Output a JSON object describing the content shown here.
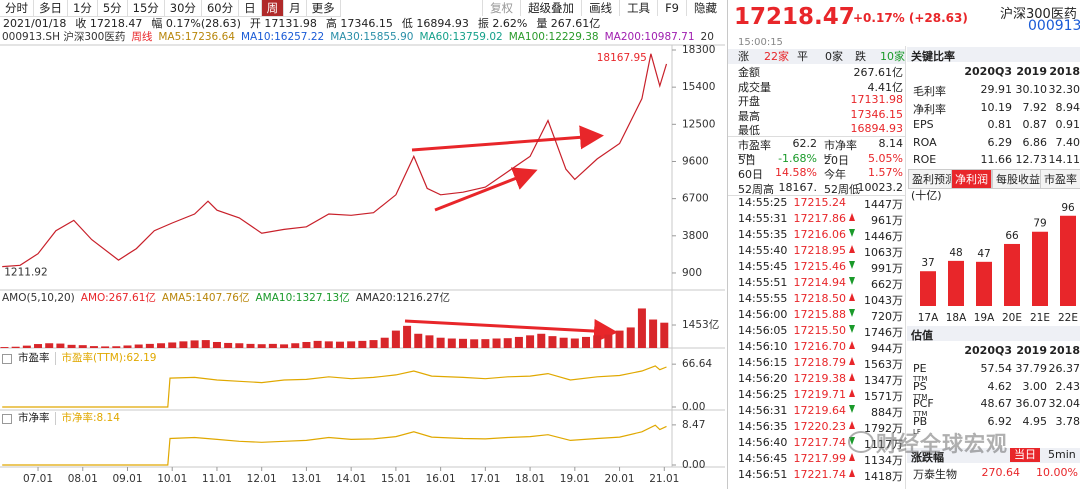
{
  "toolbar": {
    "left": [
      "分时",
      "多日",
      "1分",
      "5分",
      "15分",
      "30分",
      "60分",
      "日",
      "周",
      "月",
      "更多"
    ],
    "active_index": 8,
    "right": [
      "复权",
      "超级叠加",
      "画线",
      "工具",
      "F9",
      "隐藏"
    ]
  },
  "info": {
    "date": "2021/01/18",
    "items": [
      "收 17218.47",
      "幅 0.17%(28.63)",
      "开 17131.98",
      "高 17346.15",
      "低 16894.93",
      "振 2.62%",
      "量 267.61亿"
    ]
  },
  "ma_legend": [
    {
      "text": "000913.SH 沪深300医药",
      "color": "#333333"
    },
    {
      "text": "周线",
      "color": "#e8262a"
    },
    {
      "text": "MA5:17236.64",
      "color": "#b8860b"
    },
    {
      "text": "MA10:16257.22",
      "color": "#1a5bd6"
    },
    {
      "text": "MA30:15855.90",
      "color": "#2a8fa8"
    },
    {
      "text": "MA60:13759.02",
      "color": "#14a08a"
    },
    {
      "text": "MA100:12229.38",
      "color": "#2a9a2a"
    },
    {
      "text": "MA200:10987.71",
      "color": "#a020b0"
    },
    {
      "text": "20",
      "color": "#333333"
    }
  ],
  "price_chart": {
    "type": "line",
    "color": "#c8202a",
    "x": [
      2006.2,
      2006.6,
      2007.0,
      2007.4,
      2007.8,
      2008.2,
      2008.8,
      2009.2,
      2009.6,
      2010.0,
      2010.5,
      2010.8,
      2011.0,
      2011.5,
      2012.0,
      2012.5,
      2013.0,
      2013.5,
      2014.0,
      2014.5,
      2015.0,
      2015.4,
      2015.7,
      2016.0,
      2016.5,
      2017.0,
      2017.5,
      2018.0,
      2018.4,
      2018.8,
      2019.0,
      2019.5,
      2020.0,
      2020.5,
      2020.7,
      2020.9,
      2021.05
    ],
    "values": [
      1400,
      1500,
      2400,
      4200,
      5000,
      3500,
      1900,
      2800,
      4200,
      4800,
      5500,
      6500,
      5800,
      5200,
      4000,
      4300,
      4500,
      5500,
      5400,
      5600,
      7000,
      10000,
      7500,
      7000,
      7200,
      7600,
      8800,
      10000,
      12800,
      9000,
      8200,
      9800,
      11000,
      14500,
      18000,
      15500,
      17218.47
    ],
    "xlim": [
      2006.15,
      2021.15
    ],
    "ylim": [
      -430,
      18690
    ],
    "yticks": [
      18300,
      15400,
      12500,
      9600,
      6700,
      3800,
      900
    ],
    "xticks": [
      {
        "value": 2007,
        "label": "07.01"
      },
      {
        "value": 2008,
        "label": "08.01"
      },
      {
        "value": 2009,
        "label": "09.01"
      },
      {
        "value": 2010,
        "label": "10.01"
      },
      {
        "value": 2011,
        "label": "11.01"
      },
      {
        "value": 2012,
        "label": "12.01"
      },
      {
        "value": 2013,
        "label": "13.01"
      },
      {
        "value": 2014,
        "label": "14.01"
      },
      {
        "value": 2015,
        "label": "15.01"
      },
      {
        "value": 2016,
        "label": "16.01"
      },
      {
        "value": 2017,
        "label": "17.01"
      },
      {
        "value": 2018,
        "label": "18.01"
      },
      {
        "value": 2019,
        "label": "19.01"
      },
      {
        "value": 2020,
        "label": "20.01"
      },
      {
        "value": 2021,
        "label": "21.01"
      }
    ],
    "high_label": "18167.95",
    "low_label": "1211.92"
  },
  "volume": {
    "type": "bar",
    "color": "#d8262a",
    "legend": [
      {
        "text": "AMO(5,10,20)",
        "color": "#333333"
      },
      {
        "text": "AMO:267.61亿",
        "color": "#e8262a"
      },
      {
        "text": "AMA5:1407.76亿",
        "color": "#b8860b"
      },
      {
        "text": "AMA10:1327.13亿",
        "color": "#1a9a2a"
      },
      {
        "text": "AMA20:1216.27亿",
        "color": "#333333"
      }
    ],
    "x": [
      2006.25,
      2006.5,
      2006.75,
      2007.0,
      2007.25,
      2007.5,
      2007.75,
      2008.0,
      2008.25,
      2008.5,
      2008.75,
      2009.0,
      2009.25,
      2009.5,
      2009.75,
      2010.0,
      2010.25,
      2010.5,
      2010.75,
      2011.0,
      2011.25,
      2011.5,
      2011.75,
      2012.0,
      2012.25,
      2012.5,
      2012.75,
      2013.0,
      2013.25,
      2013.5,
      2013.75,
      2014.0,
      2014.25,
      2014.5,
      2014.75,
      2015.0,
      2015.25,
      2015.5,
      2015.75,
      2016.0,
      2016.25,
      2016.5,
      2016.75,
      2017.0,
      2017.25,
      2017.5,
      2017.75,
      2018.0,
      2018.25,
      2018.5,
      2018.75,
      2019.0,
      2019.25,
      2019.5,
      2019.75,
      2020.0,
      2020.25,
      2020.5,
      2020.75,
      2021.0
    ],
    "values": [
      60,
      80,
      150,
      250,
      300,
      280,
      200,
      180,
      120,
      100,
      110,
      160,
      220,
      260,
      300,
      350,
      420,
      480,
      500,
      380,
      320,
      300,
      260,
      240,
      260,
      230,
      300,
      380,
      450,
      420,
      400,
      420,
      450,
      500,
      650,
      1100,
      1400,
      900,
      800,
      650,
      600,
      580,
      550,
      560,
      600,
      620,
      700,
      800,
      900,
      750,
      650,
      600,
      700,
      800,
      850,
      1100,
      1300,
      2500,
      1800,
      1600
    ],
    "ylim": [
      0,
      3540
    ],
    "yticks": [
      {
        "value": 1453,
        "label": "1453亿"
      }
    ]
  },
  "pe": {
    "type": "line",
    "title": "市盈率",
    "legend": "市盈率(TTM):62.19",
    "color": "#e0a800",
    "x": [
      2006.2,
      2009.9,
      2009.95,
      2010.5,
      2011.0,
      2011.5,
      2012.0,
      2012.5,
      2013.0,
      2013.5,
      2014.0,
      2014.5,
      2015.0,
      2015.4,
      2015.8,
      2016.5,
      2017.0,
      2017.5,
      2018.0,
      2018.4,
      2018.9,
      2019.5,
      2020.0,
      2020.5,
      2020.8,
      2020.9,
      2021.05
    ],
    "values": [
      0,
      0,
      45,
      46,
      42,
      40,
      38,
      42,
      43,
      47,
      44,
      46,
      50,
      56,
      48,
      46,
      44,
      47,
      48,
      52,
      42,
      47,
      49,
      56,
      64,
      58,
      62.19
    ],
    "ylim": [
      0,
      70
    ],
    "yticks": [
      66.64,
      {
        "value": 0,
        "label": "0.00"
      }
    ]
  },
  "pb": {
    "type": "line",
    "title": "市净率",
    "legend": "市净率:8.14",
    "color": "#e0a800",
    "x": [
      2006.2,
      2009.9,
      2009.95,
      2010.5,
      2011.0,
      2011.5,
      2012.0,
      2012.5,
      2013.0,
      2013.5,
      2014.0,
      2014.5,
      2015.0,
      2015.4,
      2015.8,
      2016.5,
      2017.0,
      2017.5,
      2018.0,
      2018.4,
      2018.9,
      2019.5,
      2020.0,
      2020.5,
      2020.8,
      2020.9,
      2021.05
    ],
    "values": [
      0,
      0,
      5.6,
      5.8,
      5.4,
      5,
      4.8,
      5,
      5.2,
      5.8,
      5.4,
      5.5,
      6,
      7,
      5.9,
      5.6,
      5.5,
      5.8,
      6,
      6.4,
      5.2,
      5.6,
      5.9,
      7,
      8.4,
      7.5,
      8.14
    ],
    "ylim": [
      0,
      9.5
    ],
    "yticks": [
      8.47,
      {
        "value": 0,
        "label": "0.00"
      }
    ]
  },
  "quote_header": {
    "price": "17218.47",
    "change": "+0.17% (+28.63)",
    "name": "沪深300医药",
    "code": "000913",
    "time": "15:00:15"
  },
  "breadth": [
    "涨",
    "22家",
    "平",
    "0家",
    "跌",
    "10家"
  ],
  "quote": [
    {
      "label": "金额",
      "value": "267.61亿",
      "color": "#222222"
    },
    {
      "label": "成交量",
      "value": "4.41亿",
      "color": "#222222"
    },
    {
      "label": "开盘",
      "value": "17131.98",
      "color": "#e8262a"
    },
    {
      "label": "最高",
      "value": "17346.15",
      "color": "#e8262a"
    },
    {
      "label": "最低",
      "value": "16894.93",
      "color": "#e8262a"
    }
  ],
  "stats": [
    [
      {
        "label": "市盈率",
        "sup": "TTM",
        "value": "62.2",
        "color": "#222222"
      },
      {
        "label": "市净率",
        "sup": "LF",
        "value": "8.14",
        "color": "#222222"
      }
    ],
    [
      {
        "label": "5日",
        "value": "-1.68%",
        "color": "#1a9a2a"
      },
      {
        "label": "20日",
        "value": "5.05%",
        "color": "#e8262a"
      }
    ],
    [
      {
        "label": "60日",
        "value": "14.58%",
        "color": "#e8262a"
      },
      {
        "label": "今年",
        "value": "1.57%",
        "color": "#e8262a"
      }
    ],
    [
      {
        "label": "52周高",
        "value": "18167.",
        "color": "#222222"
      },
      {
        "label": "52周低",
        "value": "10023.2",
        "color": "#222222"
      }
    ]
  ],
  "trades": [
    {
      "time": "14:55:25",
      "price": "17215.24",
      "dir": null,
      "vol": "1447万"
    },
    {
      "time": "14:55:31",
      "price": "17217.86",
      "dir": "up",
      "vol": "961万"
    },
    {
      "time": "14:55:35",
      "price": "17216.06",
      "dir": "down",
      "vol": "1446万"
    },
    {
      "time": "14:55:40",
      "price": "17218.95",
      "dir": "up",
      "vol": "1063万"
    },
    {
      "time": "14:55:45",
      "price": "17215.46",
      "dir": "down",
      "vol": "991万"
    },
    {
      "time": "14:55:51",
      "price": "17214.94",
      "dir": "down",
      "vol": "662万"
    },
    {
      "time": "14:55:55",
      "price": "17218.50",
      "dir": "up",
      "vol": "1043万"
    },
    {
      "time": "14:56:00",
      "price": "17215.88",
      "dir": "down",
      "vol": "720万"
    },
    {
      "time": "14:56:05",
      "price": "17215.50",
      "dir": "down",
      "vol": "1746万"
    },
    {
      "time": "14:56:10",
      "price": "17216.70",
      "dir": "up",
      "vol": "944万"
    },
    {
      "time": "14:56:15",
      "price": "17218.79",
      "dir": "up",
      "vol": "1563万"
    },
    {
      "time": "14:56:20",
      "price": "17219.38",
      "dir": "up",
      "vol": "1347万"
    },
    {
      "time": "14:56:25",
      "price": "17219.71",
      "dir": "up",
      "vol": "1571万"
    },
    {
      "time": "14:56:31",
      "price": "17219.64",
      "dir": "down",
      "vol": "884万"
    },
    {
      "time": "14:56:35",
      "price": "17220.23",
      "dir": "up",
      "vol": "1792万"
    },
    {
      "time": "14:56:40",
      "price": "17217.74",
      "dir": "down",
      "vol": "1117万"
    },
    {
      "time": "14:56:45",
      "price": "17217.99",
      "dir": "up",
      "vol": "1134万"
    },
    {
      "time": "14:56:51",
      "price": "17221.74",
      "dir": "up",
      "vol": "1418万"
    }
  ],
  "ratios": {
    "title": "关键比率",
    "headers": [
      "2020Q3",
      "2019",
      "2018"
    ],
    "rows": [
      [
        "毛利率",
        "29.91",
        "30.10",
        "32.30"
      ],
      [
        "净利率",
        "10.19",
        "7.92",
        "8.94"
      ],
      [
        "EPS",
        "0.81",
        "0.87",
        "0.91"
      ],
      [
        "ROA",
        "6.29",
        "6.86",
        "7.40"
      ],
      [
        "ROE",
        "11.66",
        "12.73",
        "14.11"
      ]
    ]
  },
  "tabs": {
    "items": [
      "盈利预测",
      "净利润",
      "每股收益",
      "市盈率"
    ],
    "active_index": 1,
    "unit": "(十亿)"
  },
  "forecast": {
    "type": "bar",
    "color": "#e8262a",
    "categories": [
      "17A",
      "18A",
      "19A",
      "20E",
      "21E",
      "22E"
    ],
    "values": [
      37,
      48,
      47,
      66,
      79,
      96
    ]
  },
  "valuation": {
    "title": "估值",
    "headers": [
      "2020Q3",
      "2019",
      "2018"
    ],
    "rows": [
      [
        {
          "label": "PE",
          "sup": "TTM"
        },
        "57.54",
        "37.79",
        "26.37"
      ],
      [
        {
          "label": "PS",
          "sup": "TTM"
        },
        "4.62",
        "3.00",
        "2.43"
      ],
      [
        {
          "label": "PCF",
          "sup": "TTM"
        },
        "48.67",
        "36.07",
        "32.04"
      ],
      [
        {
          "label": "PB",
          "sup": "LF"
        },
        "6.92",
        "4.95",
        "3.78"
      ]
    ]
  },
  "movers": {
    "title": "涨跌幅",
    "tabs": [
      "当日",
      "5min"
    ],
    "rows": [
      [
        "万泰生物",
        "270.64",
        "10.00%"
      ]
    ]
  },
  "watermark": "财经全球宏观"
}
